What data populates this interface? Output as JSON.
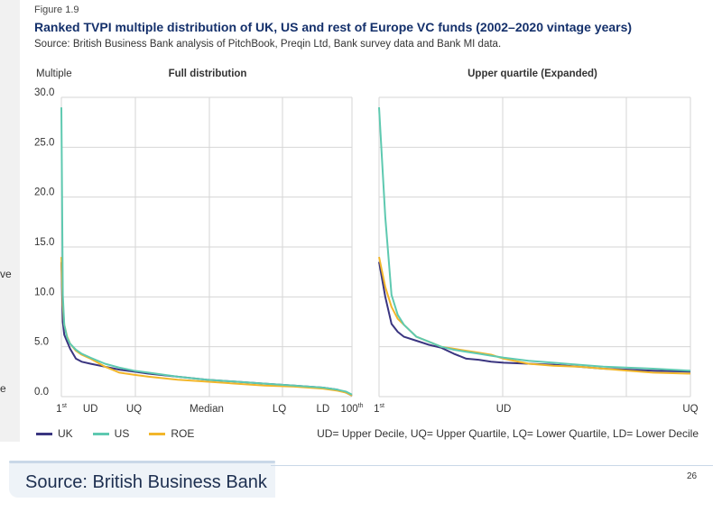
{
  "figure_label": "Figure 1.9",
  "title": "Ranked TVPI multiple distribution of UK, US and rest of Europe VC funds (2002–2020 vintage years)",
  "subtitle": "Source: British Business Bank analysis of PitchBook, Preqin Ltd, Bank survey data and Bank MI data.",
  "edge_fragments": [
    "ve",
    "e"
  ],
  "footnote": "UD= Upper Decile, UQ= Upper Quartile, LQ= Lower Quartile, LD= Lower Decile",
  "footer_source": "Source: British Business Bank",
  "page_number": "26",
  "colors": {
    "UK": "#3a3580",
    "US": "#5ec9b0",
    "ROE": "#f2b62a",
    "grid": "#d6d6d6",
    "text": "#333333"
  },
  "chart_data": [
    {
      "type": "line",
      "title": "Full distribution",
      "ylabel": "Multiple",
      "ylim": [
        0,
        30
      ],
      "yticks": [
        "0.0",
        "5.0",
        "10.0",
        "15.0",
        "20.0",
        "25.0",
        "30.0"
      ],
      "xlim": [
        0,
        100
      ],
      "xticks": [
        {
          "label": "1",
          "sup": "st",
          "at": 0
        },
        {
          "label": "UD",
          "sup": "",
          "at": 10
        },
        {
          "label": "UQ",
          "sup": "",
          "at": 25
        },
        {
          "label": "Median",
          "sup": "",
          "at": 50
        },
        {
          "label": "LQ",
          "sup": "",
          "at": 75
        },
        {
          "label": "LD",
          "sup": "",
          "at": 90
        },
        {
          "label": "100",
          "sup": "th",
          "at": 100
        }
      ],
      "grid": true,
      "series": [
        {
          "name": "UK",
          "x": [
            0,
            0.5,
            1,
            2,
            3,
            5,
            7,
            10,
            15,
            20,
            25,
            30,
            40,
            50,
            60,
            70,
            80,
            90,
            95,
            98,
            100
          ],
          "values": [
            13.5,
            7.5,
            6.2,
            5.5,
            4.8,
            3.8,
            3.5,
            3.3,
            3.0,
            2.7,
            2.5,
            2.3,
            2.0,
            1.7,
            1.5,
            1.3,
            1.1,
            0.9,
            0.7,
            0.4,
            0.1
          ]
        },
        {
          "name": "US",
          "x": [
            0,
            0.5,
            1,
            2,
            3,
            5,
            7,
            10,
            15,
            20,
            25,
            30,
            40,
            50,
            60,
            70,
            80,
            90,
            95,
            98,
            100
          ],
          "values": [
            29.0,
            10.2,
            7.2,
            5.9,
            5.3,
            4.7,
            4.3,
            3.9,
            3.3,
            2.9,
            2.6,
            2.4,
            2.0,
            1.7,
            1.5,
            1.3,
            1.1,
            0.9,
            0.7,
            0.5,
            0.2
          ]
        },
        {
          "name": "ROE",
          "x": [
            0,
            0.5,
            1,
            2,
            3,
            5,
            7,
            10,
            15,
            20,
            25,
            30,
            40,
            50,
            60,
            70,
            80,
            90,
            95,
            98,
            100
          ],
          "values": [
            14.0,
            9.2,
            7.2,
            6.0,
            5.3,
            4.6,
            4.2,
            3.8,
            3.0,
            2.4,
            2.2,
            2.0,
            1.7,
            1.5,
            1.3,
            1.1,
            1.0,
            0.8,
            0.6,
            0.4,
            0.1
          ]
        }
      ]
    },
    {
      "type": "line",
      "title": "Upper quartile (Expanded)",
      "ylim": [
        0,
        30
      ],
      "xlim": [
        0,
        25
      ],
      "xticks": [
        {
          "label": "1",
          "sup": "st",
          "at": 0
        },
        {
          "label": "UD",
          "sup": "",
          "at": 10
        },
        {
          "label": "UQ",
          "sup": "",
          "at": 25
        }
      ],
      "grid": true,
      "series": [
        {
          "name": "UK",
          "x": [
            0,
            0.5,
            1,
            1.5,
            2,
            3,
            4,
            5,
            6,
            7,
            8,
            9,
            10,
            12,
            14,
            16,
            18,
            20,
            22,
            25
          ],
          "values": [
            13.5,
            10.0,
            7.3,
            6.5,
            6.0,
            5.6,
            5.2,
            4.9,
            4.3,
            3.8,
            3.7,
            3.5,
            3.4,
            3.3,
            3.2,
            3.0,
            2.8,
            2.7,
            2.6,
            2.5
          ]
        },
        {
          "name": "US",
          "x": [
            0,
            0.5,
            1,
            1.5,
            2,
            3,
            4,
            5,
            6,
            7,
            8,
            9,
            10,
            12,
            14,
            16,
            18,
            20,
            22,
            25
          ],
          "values": [
            29.0,
            18.0,
            10.2,
            8.2,
            7.2,
            6.0,
            5.5,
            5.0,
            4.7,
            4.5,
            4.3,
            4.1,
            3.9,
            3.6,
            3.4,
            3.2,
            3.0,
            2.9,
            2.8,
            2.6
          ]
        },
        {
          "name": "ROE",
          "x": [
            0,
            0.5,
            1,
            1.5,
            2,
            3,
            4,
            5,
            6,
            7,
            8,
            9,
            10,
            12,
            14,
            16,
            18,
            20,
            22,
            25
          ],
          "values": [
            14.0,
            11.0,
            9.0,
            7.8,
            7.2,
            6.0,
            5.5,
            5.0,
            4.8,
            4.6,
            4.4,
            4.2,
            3.8,
            3.3,
            3.1,
            3.0,
            2.8,
            2.6,
            2.4,
            2.3
          ]
        }
      ]
    }
  ],
  "legend": [
    {
      "name": "UK",
      "color_key": "UK"
    },
    {
      "name": "US",
      "color_key": "US"
    },
    {
      "name": "ROE",
      "color_key": "ROE"
    }
  ]
}
